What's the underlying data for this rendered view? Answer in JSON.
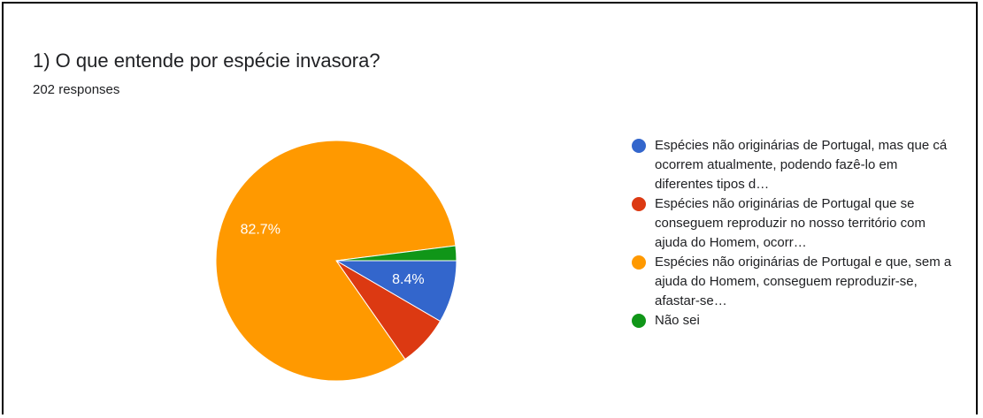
{
  "question": {
    "title": "1) O que entende por espécie invasora?",
    "responses": "202 responses"
  },
  "chart_data": {
    "type": "pie",
    "title": "1) O que entende por espécie invasora?",
    "subtitle": "202 responses",
    "legend_position": "right",
    "slices": [
      {
        "label": "Espécies não originárias de Portugal, mas que cá ocorrem atualmente, podendo fazê-lo em diferentes tipos d…",
        "value": 8.4,
        "color": "#3366cc",
        "data_label": "8.4%"
      },
      {
        "label": "Espécies não originárias de Portugal que se conseguem reproduzir no nosso território com ajuda do Homem, ocorr…",
        "value": 6.9,
        "color": "#dc3912",
        "data_label": ""
      },
      {
        "label": "Espécies não originárias de Portugal e que, sem a ajuda do Homem, conseguem reproduzir-se, afastar-se…",
        "value": 82.7,
        "color": "#ff9900",
        "data_label": "82.7%"
      },
      {
        "label": "Não sei",
        "value": 2.0,
        "color": "#109618",
        "data_label": ""
      }
    ]
  }
}
